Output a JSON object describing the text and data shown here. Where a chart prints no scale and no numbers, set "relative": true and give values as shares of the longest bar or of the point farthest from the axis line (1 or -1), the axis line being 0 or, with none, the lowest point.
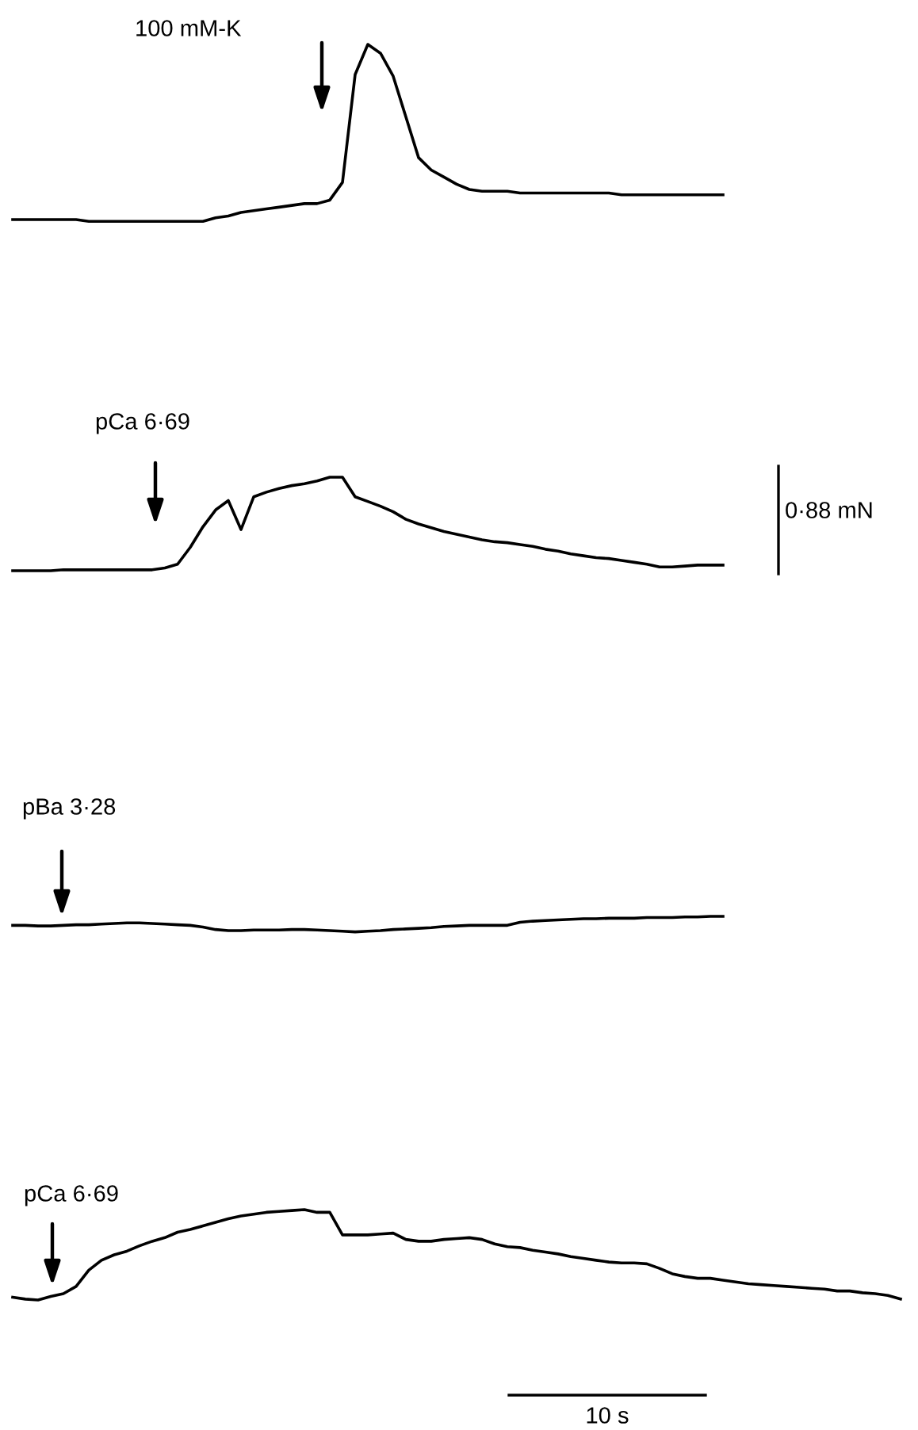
{
  "chart_data": [
    {
      "type": "line",
      "relative": true,
      "color": "#000000",
      "annotations": [
        "100 mM-K"
      ],
      "categories": [
        null,
        null,
        null,
        null,
        null,
        null,
        null,
        null,
        null,
        null,
        null,
        null,
        null,
        null,
        null,
        null,
        null,
        null,
        null,
        null,
        null,
        null,
        null,
        null,
        null,
        null,
        null,
        null,
        null,
        null,
        null,
        null,
        null,
        null,
        null,
        null,
        null,
        null,
        null,
        null,
        null,
        null,
        null,
        null,
        null,
        null,
        null,
        null,
        null,
        null,
        null,
        null,
        null,
        null,
        null,
        null,
        null
      ],
      "values": [
        0.01,
        0.01,
        0.01,
        0.01,
        0.01,
        0.01,
        0,
        0,
        0,
        0,
        0,
        0,
        0,
        0,
        0,
        0,
        0.02,
        0.03,
        0.05,
        0.06,
        0.07,
        0.08,
        0.09,
        0.1,
        0.1,
        0.12,
        0.22,
        0.83,
        1,
        0.95,
        0.82,
        0.59,
        0.36,
        0.29,
        0.25,
        0.21,
        0.18,
        0.17,
        0.17,
        0.17,
        0.16,
        0.16,
        0.16,
        0.16,
        0.16,
        0.16,
        0.16,
        0.16,
        0.15,
        0.15,
        0.15,
        0.15,
        0.15,
        0.15,
        0.15,
        0.15,
        0.15
      ]
    },
    {
      "type": "line",
      "relative": true,
      "color": "#000000",
      "annotations": [
        "pCa 6·69",
        "0·88 mN"
      ],
      "categories": [
        null,
        null,
        null,
        null,
        null,
        null,
        null,
        null,
        null,
        null,
        null,
        null,
        null,
        null,
        null,
        null,
        null,
        null,
        null,
        null,
        null,
        null,
        null,
        null,
        null,
        null,
        null,
        null,
        null,
        null,
        null,
        null,
        null,
        null,
        null,
        null,
        null,
        null,
        null,
        null,
        null,
        null,
        null,
        null,
        null,
        null,
        null,
        null,
        null,
        null,
        null,
        null,
        null,
        null,
        null,
        null,
        null
      ],
      "values": [
        0,
        0,
        0,
        0,
        0.01,
        0.01,
        0.01,
        0.01,
        0.01,
        0.01,
        0.01,
        0.01,
        0.03,
        0.07,
        0.25,
        0.47,
        0.65,
        0.75,
        0.44,
        0.79,
        0.84,
        0.88,
        0.91,
        0.93,
        0.96,
        1,
        1,
        0.79,
        0.74,
        0.69,
        0.63,
        0.55,
        0.5,
        0.46,
        0.42,
        0.39,
        0.36,
        0.33,
        0.31,
        0.3,
        0.28,
        0.26,
        0.23,
        0.21,
        0.18,
        0.16,
        0.14,
        0.13,
        0.11,
        0.09,
        0.07,
        0.04,
        0.04,
        0.05,
        0.06,
        0.06,
        0.06
      ]
    },
    {
      "type": "line",
      "relative": true,
      "color": "#000000",
      "annotations": [
        "pBa 3·28"
      ],
      "categories": [
        null,
        null,
        null,
        null,
        null,
        null,
        null,
        null,
        null,
        null,
        null,
        null,
        null,
        null,
        null,
        null,
        null,
        null,
        null,
        null,
        null,
        null,
        null,
        null,
        null,
        null,
        null,
        null,
        null,
        null,
        null,
        null,
        null,
        null,
        null,
        null,
        null,
        null,
        null,
        null,
        null,
        null,
        null,
        null,
        null,
        null,
        null,
        null,
        null,
        null,
        null,
        null,
        null,
        null,
        null,
        null,
        null
      ],
      "values": [
        0.42,
        0.42,
        0.38,
        0.38,
        0.42,
        0.46,
        0.46,
        0.5,
        0.54,
        0.58,
        0.58,
        0.54,
        0.5,
        0.46,
        0.42,
        0.31,
        0.15,
        0.08,
        0.08,
        0.12,
        0.12,
        0.12,
        0.15,
        0.15,
        0.12,
        0.08,
        0.04,
        0,
        0.04,
        0.08,
        0.15,
        0.19,
        0.23,
        0.27,
        0.35,
        0.38,
        0.42,
        0.42,
        0.42,
        0.42,
        0.62,
        0.69,
        0.73,
        0.77,
        0.81,
        0.85,
        0.85,
        0.88,
        0.88,
        0.88,
        0.92,
        0.92,
        0.92,
        0.96,
        0.96,
        1,
        1
      ]
    },
    {
      "type": "line",
      "relative": true,
      "color": "#000000",
      "annotations": [
        "pCa 6·69",
        "10 s"
      ],
      "categories": [
        null,
        null,
        null,
        null,
        null,
        null,
        null,
        null,
        null,
        null,
        null,
        null,
        null,
        null,
        null,
        null,
        null,
        null,
        null,
        null,
        null,
        null,
        null,
        null,
        null,
        null,
        null,
        null,
        null,
        null,
        null,
        null,
        null,
        null,
        null,
        null,
        null,
        null,
        null,
        null,
        null,
        null,
        null,
        null,
        null,
        null,
        null,
        null,
        null,
        null,
        null,
        null,
        null,
        null,
        null,
        null,
        null,
        null,
        null,
        null,
        null,
        null,
        null,
        null,
        null,
        null,
        null,
        null,
        null,
        null,
        null
      ],
      "values": [
        0.03,
        0.01,
        0,
        0.04,
        0.07,
        0.15,
        0.33,
        0.44,
        0.5,
        0.54,
        0.6,
        0.65,
        0.69,
        0.75,
        0.78,
        0.82,
        0.86,
        0.9,
        0.93,
        0.95,
        0.97,
        0.98,
        0.99,
        1,
        0.97,
        0.97,
        0.72,
        0.72,
        0.72,
        0.73,
        0.74,
        0.67,
        0.65,
        0.65,
        0.67,
        0.68,
        0.69,
        0.67,
        0.62,
        0.59,
        0.58,
        0.55,
        0.53,
        0.51,
        0.48,
        0.46,
        0.44,
        0.42,
        0.41,
        0.41,
        0.4,
        0.35,
        0.29,
        0.26,
        0.24,
        0.24,
        0.22,
        0.2,
        0.18,
        0.17,
        0.16,
        0.15,
        0.14,
        0.13,
        0.12,
        0.1,
        0.1,
        0.08,
        0.07,
        0.05,
        0.01
      ]
    }
  ]
}
